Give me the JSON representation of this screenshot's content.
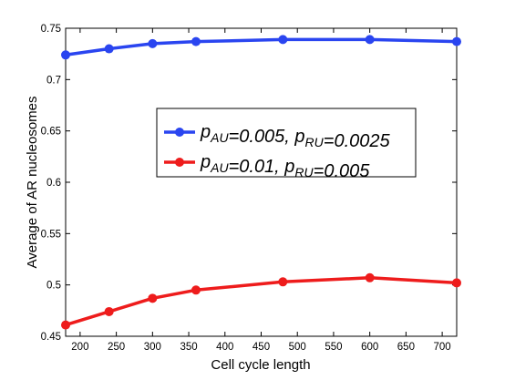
{
  "chart_data": {
    "type": "line",
    "title": "",
    "xlabel": "Cell cycle length",
    "ylabel": "Average of AR nucleosomes",
    "xlim": [
      180,
      720
    ],
    "ylim": [
      0.45,
      0.75
    ],
    "x_ticks": [
      "200",
      "250",
      "300",
      "350",
      "400",
      "450",
      "500",
      "550",
      "600",
      "650",
      "700"
    ],
    "y_ticks": [
      "0.45",
      "0.5",
      "0.55",
      "0.6",
      "0.65",
      "0.7",
      "0.75"
    ],
    "x": [
      180,
      240,
      300,
      360,
      480,
      600,
      720
    ],
    "grid": false,
    "legend_position": "center-right",
    "series": [
      {
        "legend_parts": [
          {
            "text": "p",
            "sub": "AU"
          },
          {
            "text": "=0.005, p",
            "sub": "RU"
          },
          {
            "text": "=0.0025",
            "sub": ""
          }
        ],
        "color": "#2a45f0",
        "values": [
          0.724,
          0.73,
          0.735,
          0.737,
          0.739,
          0.739,
          0.737
        ]
      },
      {
        "legend_parts": [
          {
            "text": "p",
            "sub": "AU"
          },
          {
            "text": "=0.01, p",
            "sub": "RU"
          },
          {
            "text": "=0.005",
            "sub": ""
          }
        ],
        "color": "#ee1c1c",
        "values": [
          0.461,
          0.474,
          0.487,
          0.495,
          0.503,
          0.507,
          0.502
        ]
      }
    ]
  }
}
